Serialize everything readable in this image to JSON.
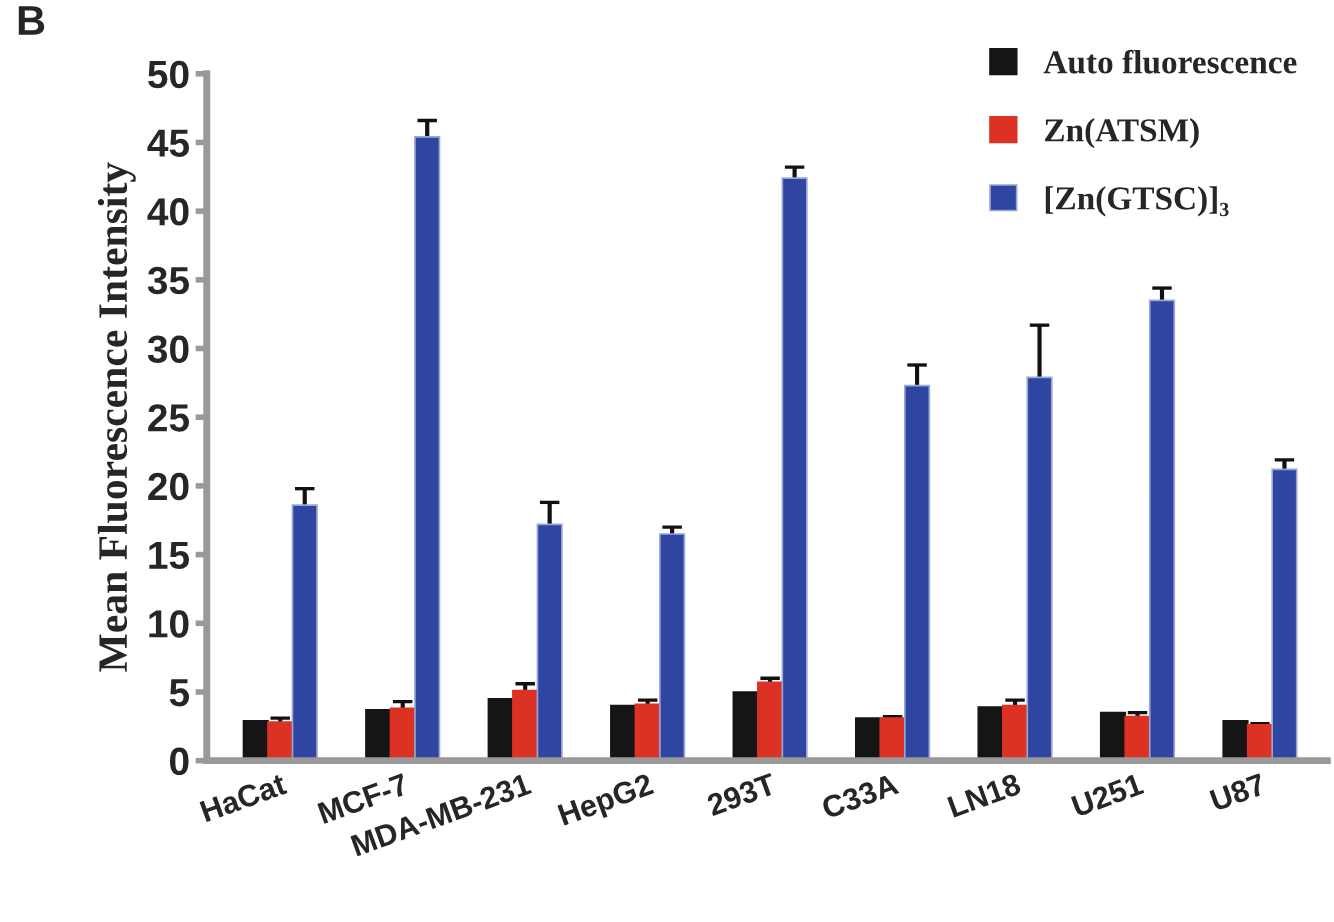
{
  "chart_data": {
    "type": "bar",
    "ylabel": "Mean Fluorescence Intensity",
    "categories": [
      "HaCat",
      "MCF-7",
      "MDA-MB-231",
      "HepG2",
      "293T",
      "C33A",
      "LN18",
      "U251",
      "U87"
    ],
    "series": [
      {
        "name": "Auto fluorescence",
        "color": "#151515",
        "values": [
          2.9,
          3.7,
          4.5,
          4.0,
          5.0,
          3.1,
          3.9,
          3.5,
          2.9
        ]
      },
      {
        "name": "Zn(ATSM)",
        "color": "#dc3224",
        "values": [
          2.8,
          3.8,
          5.1,
          4.1,
          5.7,
          3.1,
          4.0,
          3.2,
          2.6
        ],
        "errors": [
          0.3,
          0.5,
          0.5,
          0.3,
          0.3,
          0.1,
          0.4,
          0.3,
          0.1
        ]
      },
      {
        "name": "[Zn(GTSC)]₃",
        "color": "#2e45a2",
        "values": [
          18.6,
          45.4,
          17.2,
          16.5,
          42.4,
          27.3,
          27.9,
          33.5,
          21.2
        ],
        "errors": [
          1.2,
          1.2,
          1.6,
          0.5,
          0.8,
          1.5,
          3.8,
          0.9,
          0.7
        ]
      }
    ],
    "ylim": [
      0,
      50
    ],
    "yticks": [
      0,
      5,
      10,
      15,
      20,
      25,
      30,
      35,
      40,
      45,
      50
    ],
    "grid": false,
    "legend": "top right",
    "annotations": [
      "B"
    ]
  }
}
